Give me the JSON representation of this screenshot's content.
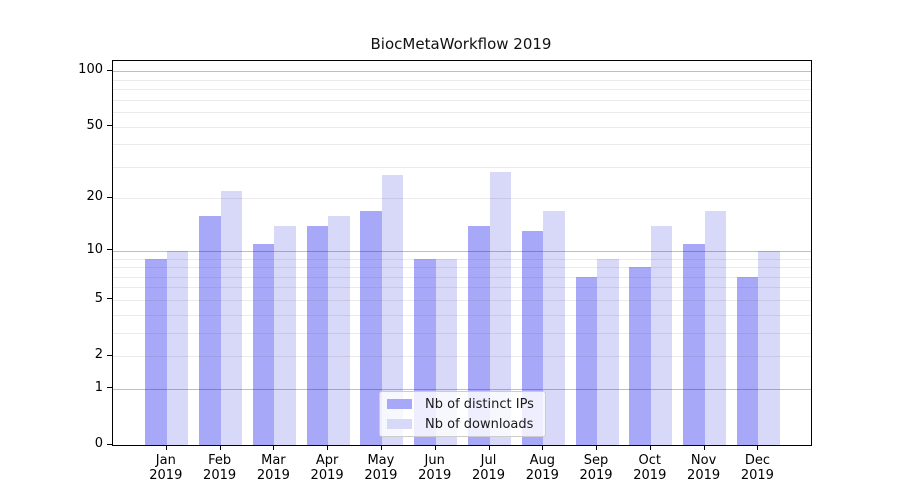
{
  "chart_data": {
    "type": "bar",
    "title": "BiocMetaWorkflow 2019",
    "categories": [
      "Jan",
      "Feb",
      "Mar",
      "Apr",
      "May",
      "Jun",
      "Jul",
      "Aug",
      "Sep",
      "Oct",
      "Nov",
      "Dec"
    ],
    "year_label": "2019",
    "series": [
      {
        "name": "Nb of distinct IPs",
        "color": "#a8a8f8",
        "values": [
          9,
          16,
          11,
          14,
          17,
          9,
          14,
          13,
          7,
          8,
          11,
          7
        ]
      },
      {
        "name": "Nb of downloads",
        "color": "#d8d8f8",
        "values": [
          10,
          22,
          14,
          16,
          27,
          9,
          28,
          17,
          9,
          14,
          17,
          10
        ]
      }
    ],
    "yscale": "log10(value+1)",
    "ytick_labels": [
      0,
      1,
      2,
      5,
      10,
      20,
      50,
      100
    ],
    "ylim": [
      0,
      113
    ],
    "grid": "on",
    "legend_position": "lower center"
  }
}
